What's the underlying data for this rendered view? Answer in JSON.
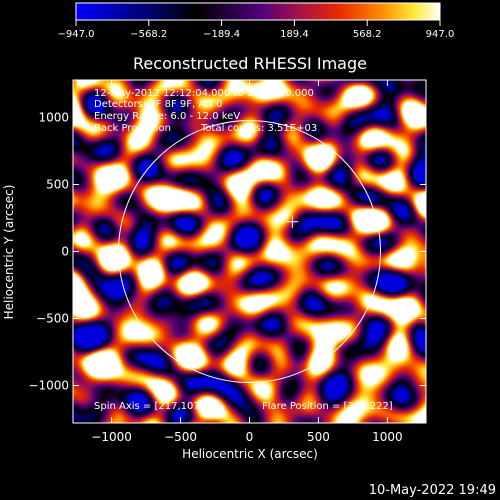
{
  "colorbar": {
    "min": -947.0,
    "max": 947.0,
    "tick_labels": [
      "−947.0",
      "−568.2",
      "−189.4",
      "189.4",
      "568.2",
      "947.0"
    ],
    "tick_values": [
      -947.0,
      -568.2,
      -189.4,
      189.4,
      568.2,
      947.0
    ],
    "colormap": "blue-black-purple-red-orange-yellow-white"
  },
  "chart_data": {
    "type": "heatmap",
    "title": "Reconstructed RHESSI Image",
    "xlabel": "Heliocentric X (arcsec)",
    "ylabel": "Heliocentric Y (arcsec)",
    "xlim": [
      -1280,
      1280
    ],
    "ylim": [
      -1280,
      1280
    ],
    "xticks": [
      -1000,
      -500,
      0,
      500,
      1000
    ],
    "yticks": [
      -1000,
      -500,
      0,
      500,
      1000
    ],
    "xtick_labels": [
      "−1000",
      "−500",
      "0",
      "500",
      "1000"
    ],
    "ytick_labels": [
      "−1000",
      "−500",
      "0",
      "500",
      "1000"
    ],
    "value_range": [
      -947.0,
      947.0
    ],
    "solar_limb_radius_arcsec": 950,
    "flare_position": [
      311,
      222
    ],
    "spin_axis": [
      217,
      107
    ],
    "bright_sources": [
      {
        "x": 300,
        "y": 230,
        "relative_intensity": 1.0
      },
      {
        "x": 520,
        "y": 680,
        "relative_intensity": 0.8
      },
      {
        "x": 90,
        "y": 610,
        "relative_intensity": 0.65
      },
      {
        "x": -900,
        "y": 720,
        "relative_intensity": 0.6
      },
      {
        "x": -1100,
        "y": 90,
        "relative_intensity": 0.65
      },
      {
        "x": 650,
        "y": -620,
        "relative_intensity": 0.7
      },
      {
        "x": 1130,
        "y": 160,
        "relative_intensity": 0.7
      },
      {
        "x": -350,
        "y": -470,
        "relative_intensity": 0.6
      },
      {
        "x": 780,
        "y": 260,
        "relative_intensity": 0.6
      },
      {
        "x": 1190,
        "y": -1050,
        "relative_intensity": 0.65
      },
      {
        "x": -520,
        "y": 410,
        "relative_intensity": 0.55
      },
      {
        "x": 330,
        "y": -300,
        "relative_intensity": 0.55
      }
    ]
  },
  "annotations": {
    "time_range": "12-May-2012 12:12:04.000 to 12:14:00.000",
    "detectors": "Detectors: 7F 8F 9F, Att 0",
    "energy_range": "Energy Range: 6.0 - 12.0 keV",
    "method": "Back Projection",
    "total_counts": "Total counts: 3.51E+03",
    "spin_axis_label": "Spin Axis = [217,107]",
    "flare_position_label": "Flare Position = [311,222]"
  },
  "footer": {
    "timestamp": "10-May-2022 19:49"
  }
}
